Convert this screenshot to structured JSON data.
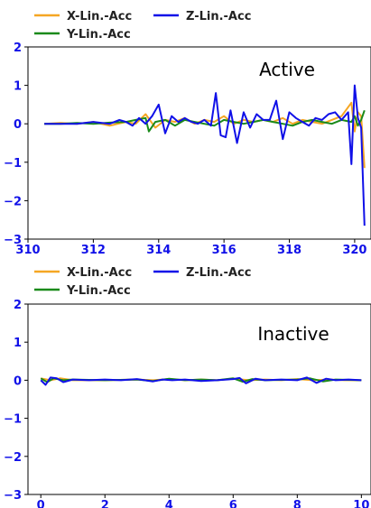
{
  "chart_data": [
    {
      "type": "line",
      "annotation": "Active",
      "xlim": [
        310,
        320.5
      ],
      "ylim": [
        -3,
        2
      ],
      "xticks": [
        310,
        312,
        314,
        316,
        318,
        320
      ],
      "yticks": [
        2,
        1,
        0,
        -1,
        -2,
        -3
      ],
      "tick_labels_x": [
        "310",
        "312",
        "314",
        "316",
        "318",
        "320"
      ],
      "tick_labels_y": [
        "2",
        "1",
        "0",
        "−1",
        "−2",
        "−3"
      ],
      "legend": [
        "X-Lin.-Acc",
        "Y-Lin.-Acc",
        "Z-Lin.-Acc"
      ],
      "legend_placement": "above",
      "grid": false,
      "series": [
        {
          "name": "X-Lin.-Acc",
          "color": "#f5a623",
          "x": [
            310.5,
            311.0,
            311.5,
            312.0,
            312.5,
            313.0,
            313.3,
            313.6,
            313.9,
            314.2,
            314.5,
            314.8,
            315.1,
            315.4,
            315.7,
            316.0,
            316.3,
            316.6,
            316.9,
            317.2,
            317.5,
            317.8,
            318.1,
            318.4,
            318.7,
            319.0,
            319.3,
            319.6,
            319.9,
            320.0,
            320.1,
            320.2,
            320.3
          ],
          "y": [
            0.0,
            0.02,
            0.0,
            0.05,
            -0.05,
            0.05,
            0.0,
            0.25,
            -0.1,
            0.1,
            0.05,
            0.15,
            0.0,
            0.1,
            0.05,
            0.2,
            0.0,
            0.1,
            0.05,
            0.1,
            0.05,
            0.15,
            0.0,
            0.1,
            0.05,
            0.0,
            0.1,
            0.2,
            0.55,
            -0.2,
            0.3,
            0.2,
            -1.15
          ]
        },
        {
          "name": "Y-Lin.-Acc",
          "color": "#1a8a1a",
          "x": [
            310.5,
            311.0,
            311.5,
            312.0,
            312.5,
            313.0,
            313.3,
            313.6,
            313.7,
            313.9,
            314.2,
            314.5,
            314.8,
            315.1,
            315.4,
            315.7,
            316.0,
            316.3,
            316.6,
            316.9,
            317.2,
            317.5,
            317.8,
            318.1,
            318.4,
            318.7,
            319.0,
            319.3,
            319.6,
            319.9,
            320.0,
            320.1,
            320.2,
            320.3
          ],
          "y": [
            0.0,
            0.0,
            0.02,
            0.0,
            0.03,
            0.05,
            0.1,
            0.15,
            -0.2,
            0.05,
            0.1,
            -0.05,
            0.1,
            0.05,
            0.0,
            -0.05,
            0.1,
            0.05,
            0.0,
            0.05,
            0.1,
            0.05,
            0.0,
            -0.05,
            0.05,
            0.1,
            0.05,
            0.0,
            0.1,
            0.05,
            0.2,
            -0.05,
            0.1,
            0.35
          ]
        },
        {
          "name": "Z-Lin.-Acc",
          "color": "#1010e8",
          "x": [
            310.5,
            311.0,
            311.5,
            312.0,
            312.5,
            312.8,
            313.0,
            313.2,
            313.4,
            313.6,
            313.8,
            314.0,
            314.2,
            314.4,
            314.6,
            314.8,
            315.0,
            315.2,
            315.4,
            315.6,
            315.75,
            315.9,
            316.05,
            316.2,
            316.4,
            316.6,
            316.8,
            317.0,
            317.2,
            317.4,
            317.6,
            317.8,
            318.0,
            318.2,
            318.4,
            318.6,
            318.8,
            319.0,
            319.2,
            319.4,
            319.6,
            319.8,
            319.9,
            320.0,
            320.1,
            320.2,
            320.3
          ],
          "y": [
            0.0,
            0.0,
            0.0,
            0.05,
            0.0,
            0.1,
            0.05,
            -0.05,
            0.15,
            0.0,
            0.2,
            0.5,
            -0.25,
            0.2,
            0.05,
            0.15,
            0.05,
            0.0,
            0.1,
            -0.05,
            0.8,
            -0.3,
            -0.35,
            0.35,
            -0.5,
            0.3,
            -0.1,
            0.25,
            0.1,
            0.1,
            0.6,
            -0.4,
            0.3,
            0.15,
            0.05,
            -0.05,
            0.15,
            0.1,
            0.25,
            0.3,
            0.1,
            0.3,
            -1.05,
            1.0,
            0.15,
            -0.1,
            -2.65
          ]
        }
      ]
    },
    {
      "type": "line",
      "annotation": "Inactive",
      "xlim": [
        -0.4,
        10.3
      ],
      "ylim": [
        -3,
        2
      ],
      "xticks": [
        0,
        2,
        4,
        6,
        8,
        10
      ],
      "yticks": [
        2,
        1,
        0,
        -1,
        -2,
        -3
      ],
      "tick_labels_x": [
        "0",
        "2",
        "4",
        "6",
        "8",
        "10"
      ],
      "tick_labels_y": [
        "2",
        "1",
        "0",
        "−1",
        "−2",
        "−3"
      ],
      "legend": [
        "X-Lin.-Acc",
        "Y-Lin.-Acc",
        "Z-Lin.-Acc"
      ],
      "legend_placement": "above",
      "grid": false,
      "series": [
        {
          "name": "X-Lin.-Acc",
          "color": "#f5a623",
          "x": [
            0.0,
            0.3,
            0.6,
            1.0,
            2.0,
            3.0,
            3.5,
            4.0,
            4.5,
            5.0,
            5.5,
            6.0,
            6.5,
            7.0,
            7.5,
            8.0,
            8.5,
            9.0,
            9.5,
            10.0
          ],
          "y": [
            0.05,
            0.0,
            0.05,
            0.0,
            0.0,
            0.02,
            0.0,
            0.03,
            0.0,
            0.02,
            0.0,
            0.04,
            0.0,
            0.02,
            0.0,
            0.03,
            0.0,
            0.02,
            0.0,
            0.0
          ]
        },
        {
          "name": "Y-Lin.-Acc",
          "color": "#1a8a1a",
          "x": [
            0.0,
            0.2,
            0.4,
            0.7,
            1.0,
            2.0,
            3.0,
            3.5,
            4.0,
            4.5,
            5.0,
            5.5,
            6.0,
            6.3,
            6.6,
            7.0,
            8.0,
            8.4,
            8.8,
            9.2,
            10.0
          ],
          "y": [
            0.05,
            -0.05,
            0.05,
            0.0,
            0.02,
            0.0,
            0.02,
            -0.02,
            0.04,
            0.0,
            0.02,
            0.0,
            0.05,
            -0.04,
            0.03,
            0.0,
            0.02,
            0.05,
            -0.03,
            0.02,
            0.0
          ]
        },
        {
          "name": "Z-Lin.-Acc",
          "color": "#1010e8",
          "x": [
            0.0,
            0.15,
            0.3,
            0.5,
            0.7,
            1.0,
            1.5,
            2.0,
            2.5,
            3.0,
            3.5,
            3.8,
            4.1,
            4.5,
            5.0,
            5.5,
            6.0,
            6.2,
            6.4,
            6.7,
            7.0,
            7.5,
            8.0,
            8.3,
            8.6,
            8.9,
            9.2,
            9.6,
            10.0
          ],
          "y": [
            0.0,
            -0.12,
            0.07,
            0.05,
            -0.05,
            0.02,
            0.0,
            0.02,
            0.0,
            0.03,
            -0.03,
            0.02,
            0.0,
            0.02,
            -0.02,
            0.0,
            0.03,
            0.06,
            -0.08,
            0.04,
            0.0,
            0.02,
            0.0,
            0.07,
            -0.07,
            0.04,
            0.0,
            0.02,
            0.0
          ]
        }
      ]
    }
  ]
}
